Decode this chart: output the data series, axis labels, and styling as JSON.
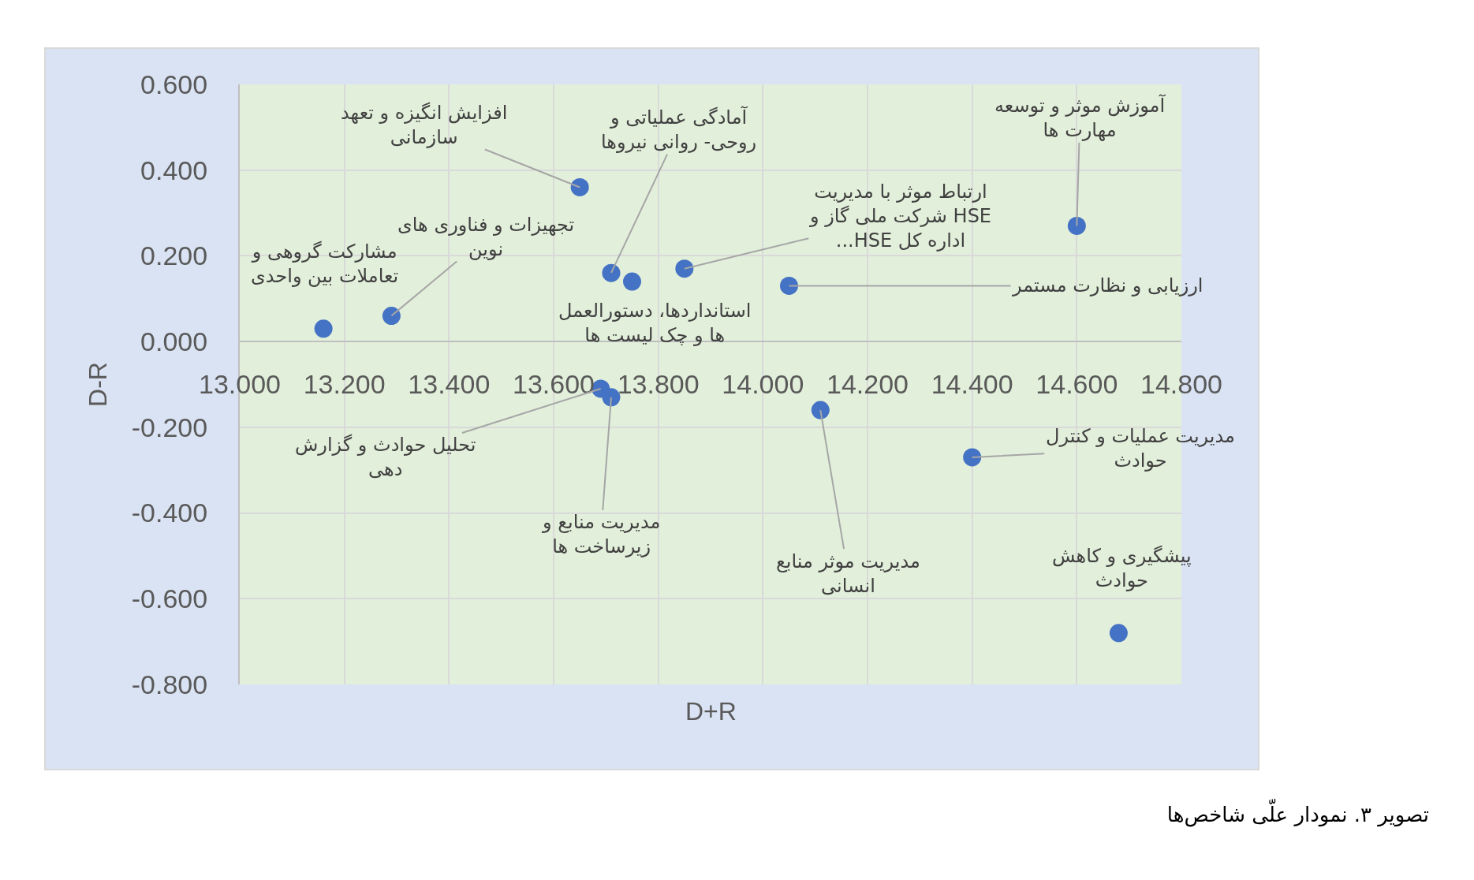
{
  "chart_data": {
    "type": "scatter",
    "color": "#4472c4",
    "marker": "circle",
    "x": [
      13.65,
      13.71,
      13.29,
      13.16,
      13.75,
      13.85,
      14.05,
      14.6,
      13.69,
      13.71,
      14.11,
      14.4,
      14.68
    ],
    "values": [
      0.36,
      0.16,
      0.06,
      0.03,
      0.14,
      0.17,
      0.13,
      0.27,
      -0.11,
      -0.13,
      -0.16,
      -0.27,
      -0.68
    ],
    "xlabel": "D+R",
    "ylabel": "D-R",
    "xlim": [
      13,
      14.8
    ],
    "xticks": [
      {
        "value": 13,
        "label": "13.000"
      },
      {
        "value": 13.2,
        "label": "13.200"
      },
      {
        "value": 13.4,
        "label": "13.400"
      },
      {
        "value": 13.6,
        "label": "13.600"
      },
      {
        "value": 13.8,
        "label": "13.800"
      },
      {
        "value": 14,
        "label": "14.000"
      },
      {
        "value": 14.2,
        "label": "14.200"
      },
      {
        "value": 14.4,
        "label": "14.400"
      },
      {
        "value": 14.6,
        "label": "14.600"
      },
      {
        "value": 14.8,
        "label": "14.800"
      }
    ],
    "ylim": [
      -0.8,
      0.6
    ],
    "yticks": [
      {
        "value": -0.8,
        "label": "-0.800"
      },
      {
        "value": -0.6,
        "label": "-0.600"
      },
      {
        "value": -0.4,
        "label": "-0.400"
      },
      {
        "value": -0.2,
        "label": "-0.200"
      },
      {
        "value": 0,
        "label": "0.000"
      },
      {
        "value": 0.2,
        "label": "0.200"
      },
      {
        "value": 0.4,
        "label": "0.400"
      },
      {
        "value": 0.6,
        "label": "0.600"
      }
    ],
    "grid": true,
    "annotations": [
      {
        "text": "افزایش انگیزه و تعهد سازمانی",
        "x": 13.65,
        "y": 0.36
      },
      {
        "text": "آمادگی عملیاتی و روحی- روانی نیروها",
        "x": 13.71,
        "y": 0.16
      },
      {
        "text": "تجهیزات و فناوری های نوین",
        "x": 13.29,
        "y": 0.06
      },
      {
        "text": "مشارکت گروهی و تعاملات بین واحدی",
        "x": 13.16,
        "y": 0.03
      },
      {
        "text": "استانداردها، دستورالعمل ها و چک لیست ها",
        "x": 13.75,
        "y": 0.14
      },
      {
        "text": "ارتباط موثر با مدیریت HSE شرکت ملی گاز و اداره کل HSE...",
        "x": 13.85,
        "y": 0.17
      },
      {
        "text": "ارزیابی و نظارت مستمر",
        "x": 14.05,
        "y": 0.13
      },
      {
        "text": "آموزش موثر و توسعه مهارت ها",
        "x": 14.6,
        "y": 0.27
      },
      {
        "text": "تحلیل حوادث و گزارش دهی",
        "x": 13.69,
        "y": -0.11
      },
      {
        "text": "مدیریت منابع و زیرساخت ها",
        "x": 13.71,
        "y": -0.13
      },
      {
        "text": "مدیریت موثر منابع انسانی",
        "x": 14.11,
        "y": -0.16
      },
      {
        "text": "مدیریت عملیات و کنترل حوادث",
        "x": 14.4,
        "y": -0.27
      },
      {
        "text": "پیشگیری و کاهش حوادث",
        "x": 14.68,
        "y": -0.68
      },
      "تصویر ۳. نمودار علّی شاخص‌ها"
    ]
  }
}
